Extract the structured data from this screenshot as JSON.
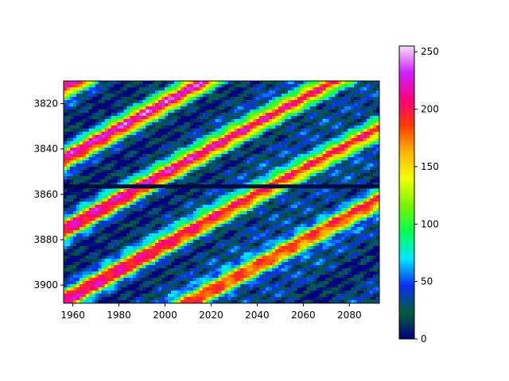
{
  "chart_data": {
    "type": "heatmap",
    "title": "",
    "xlabel": "",
    "ylabel": "",
    "xlim": [
      1956,
      2093
    ],
    "ylim": [
      3908,
      3810
    ],
    "x_ticks": [
      1960,
      1980,
      2000,
      2020,
      2040,
      2060,
      2080
    ],
    "y_ticks": [
      3820,
      3840,
      3860,
      3880,
      3900
    ],
    "colorbar": {
      "range": [
        0,
        255
      ],
      "ticks": [
        0,
        50,
        100,
        150,
        200,
        250
      ],
      "colormap": "gist_ncar",
      "colors": [
        "#000080",
        "#005f3a",
        "#0b2ff2",
        "#00e6ff",
        "#00ff52",
        "#7af200",
        "#f0ff00",
        "#ffb700",
        "#ff3c00",
        "#ff007e",
        "#cc21ff",
        "#f6dff8"
      ]
    },
    "gap_row_y": 3856.5,
    "notes_visible": "diagonal bands of high values running from lower-left to upper-right over a dark low-value background"
  }
}
